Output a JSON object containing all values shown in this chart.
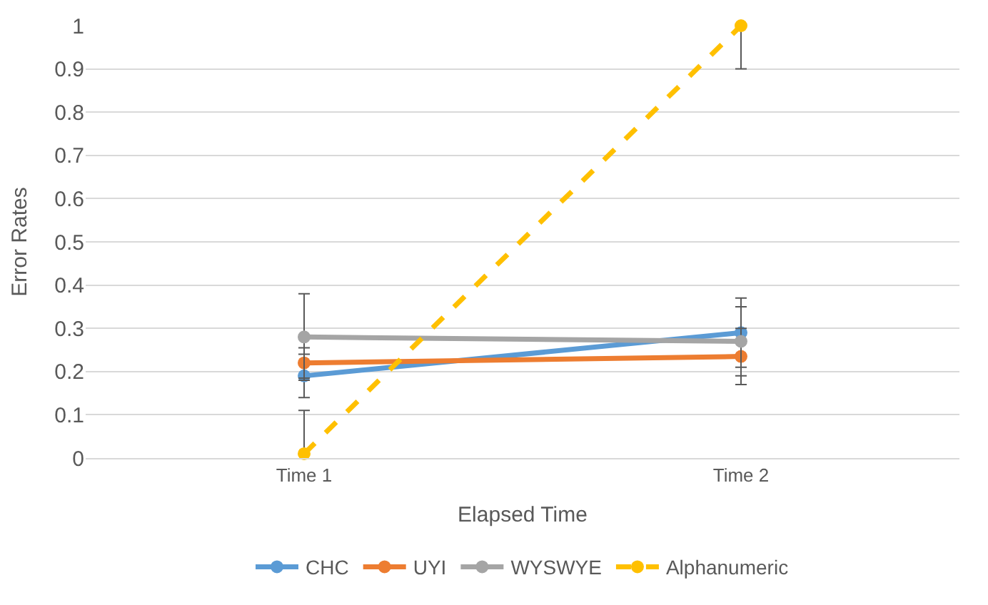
{
  "chart_data": {
    "type": "line",
    "xlabel": "Elapsed Time",
    "ylabel": "Error Rates",
    "categories": [
      "Time 1",
      "Time 2"
    ],
    "series": [
      {
        "name": "CHC",
        "color": "#5b9bd5",
        "values": [
          0.19,
          0.29
        ],
        "errors": [
          0.05,
          0.08
        ]
      },
      {
        "name": "UYI",
        "color": "#ed7d31",
        "values": [
          0.22,
          0.235
        ],
        "errors": [
          0.035,
          0.065
        ]
      },
      {
        "name": "WYSWYE",
        "color": "#a5a5a5",
        "values": [
          0.28,
          0.27
        ],
        "errors": [
          0.1,
          0.08
        ]
      },
      {
        "name": "Alphanumeric",
        "color": "#ffc000",
        "values": [
          0.01,
          1.0
        ],
        "errors": [
          [
            0.01,
            0.11
          ],
          [
            0.9,
            1.0
          ]
        ],
        "line_style": "dashed"
      }
    ],
    "ylim": [
      0,
      1.0
    ],
    "yticks": [
      0,
      0.1,
      0.2,
      0.3,
      0.4,
      0.5,
      0.6,
      0.7,
      0.8,
      0.9,
      1
    ],
    "grid": "y",
    "legend": "bottom",
    "marker": "circle",
    "line_style": "solid"
  }
}
